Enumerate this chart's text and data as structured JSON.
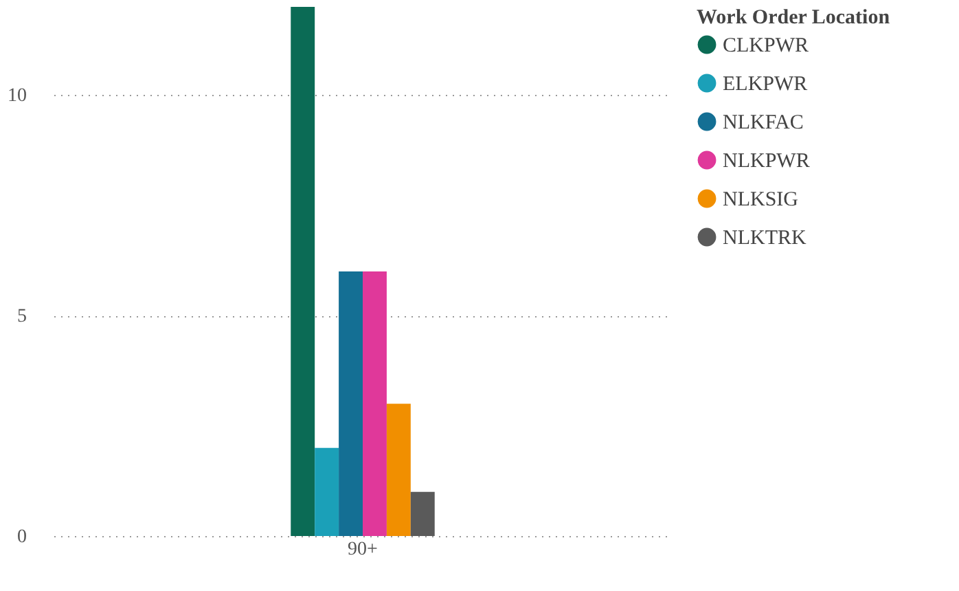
{
  "chart_data": {
    "type": "bar",
    "legend_title": "Work Order Location",
    "categories": [
      "90+"
    ],
    "series": [
      {
        "name": "CLKPWR",
        "color": "#0b6b55",
        "values": [
          12
        ]
      },
      {
        "name": "ELKPWR",
        "color": "#1ba0b8",
        "values": [
          2
        ]
      },
      {
        "name": "NLKFAC",
        "color": "#146f94",
        "values": [
          6
        ]
      },
      {
        "name": "NLKPWR",
        "color": "#e0389a",
        "values": [
          6
        ]
      },
      {
        "name": "NLKSIG",
        "color": "#f18f00",
        "values": [
          3
        ]
      },
      {
        "name": "NLKTRK",
        "color": "#5a5a5a",
        "values": [
          1
        ]
      }
    ],
    "ylim": [
      0,
      12
    ],
    "yticks": [
      0,
      5,
      10
    ],
    "grid": "y",
    "legend": "top right"
  }
}
